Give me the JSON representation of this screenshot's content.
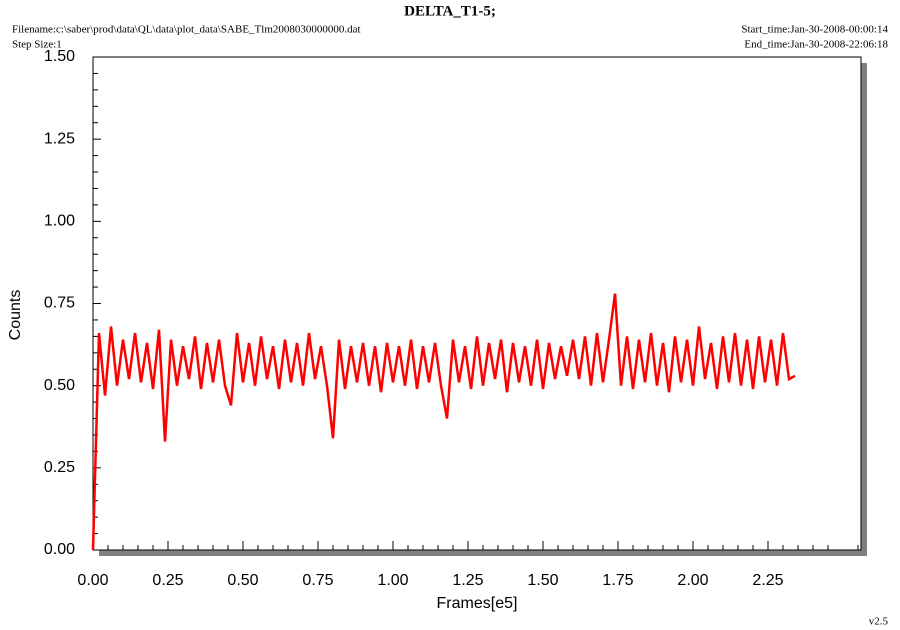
{
  "chart_data": {
    "type": "line",
    "title": "DELTA_T1-5;",
    "filename": "Filename:c:\\saber\\prod\\data\\QL\\data\\plot_data\\SABE_Tlm2008030000000.dat",
    "step_size": "Step Size:1",
    "start_time": "Start_time:Jan-30-2008-00:00:14",
    "end_time": "End_time:Jan-30-2008-22:06:18",
    "version": "v2.5",
    "x_label": "Frames[e5]",
    "y_label": "Counts",
    "xlim": [
      0,
      2.56
    ],
    "ylim": [
      0,
      1.5
    ],
    "xticks": [
      {
        "value": 0,
        "label": "0.00"
      },
      {
        "value": 0.25,
        "label": "0.25"
      },
      {
        "value": 0.5,
        "label": "0.50"
      },
      {
        "value": 0.75,
        "label": "0.75"
      },
      {
        "value": 1,
        "label": "1.00"
      },
      {
        "value": 1.25,
        "label": "1.25"
      },
      {
        "value": 1.5,
        "label": "1.50"
      },
      {
        "value": 1.75,
        "label": "1.75"
      },
      {
        "value": 2,
        "label": "2.00"
      },
      {
        "value": 2.25,
        "label": "2.25"
      }
    ],
    "yticks": [
      {
        "value": 0,
        "label": "0.00"
      },
      {
        "value": 0.25,
        "label": "0.25"
      },
      {
        "value": 0.5,
        "label": "0.50"
      },
      {
        "value": 0.75,
        "label": "0.75"
      },
      {
        "value": 1,
        "label": "1.00"
      },
      {
        "value": 1.25,
        "label": "1.25"
      },
      {
        "value": 1.5,
        "label": "1.50"
      }
    ],
    "grid": false,
    "color": "#ff0000",
    "x": [
      0,
      0.02,
      0.04,
      0.06,
      0.08,
      0.1,
      0.12,
      0.14,
      0.16,
      0.18,
      0.2,
      0.22,
      0.24,
      0.26,
      0.28,
      0.3,
      0.32,
      0.34,
      0.36,
      0.38,
      0.4,
      0.42,
      0.44,
      0.46,
      0.48,
      0.5,
      0.52,
      0.54,
      0.56,
      0.58,
      0.6,
      0.62,
      0.64,
      0.66,
      0.68,
      0.7,
      0.72,
      0.74,
      0.76,
      0.78,
      0.8,
      0.82,
      0.84,
      0.86,
      0.88,
      0.9,
      0.92,
      0.94,
      0.96,
      0.98,
      1,
      1.02,
      1.04,
      1.06,
      1.08,
      1.1,
      1.12,
      1.14,
      1.16,
      1.18,
      1.2,
      1.22,
      1.24,
      1.26,
      1.28,
      1.3,
      1.32,
      1.34,
      1.36,
      1.38,
      1.4,
      1.42,
      1.44,
      1.46,
      1.48,
      1.5,
      1.52,
      1.54,
      1.56,
      1.58,
      1.6,
      1.62,
      1.64,
      1.66,
      1.68,
      1.7,
      1.72,
      1.74,
      1.76,
      1.78,
      1.8,
      1.82,
      1.84,
      1.86,
      1.88,
      1.9,
      1.92,
      1.94,
      1.96,
      1.98,
      2,
      2.02,
      2.04,
      2.06,
      2.08,
      2.1,
      2.12,
      2.14,
      2.16,
      2.18,
      2.2,
      2.22,
      2.24,
      2.26,
      2.28,
      2.3,
      2.32,
      2.34
    ],
    "values": [
      0,
      0.66,
      0.47,
      0.68,
      0.5,
      0.64,
      0.52,
      0.66,
      0.51,
      0.63,
      0.49,
      0.67,
      0.33,
      0.64,
      0.5,
      0.62,
      0.52,
      0.65,
      0.49,
      0.63,
      0.51,
      0.64,
      0.5,
      0.44,
      0.66,
      0.51,
      0.63,
      0.5,
      0.65,
      0.52,
      0.62,
      0.49,
      0.64,
      0.51,
      0.63,
      0.5,
      0.66,
      0.52,
      0.62,
      0.5,
      0.34,
      0.64,
      0.49,
      0.62,
      0.51,
      0.63,
      0.5,
      0.62,
      0.48,
      0.63,
      0.51,
      0.62,
      0.5,
      0.64,
      0.49,
      0.62,
      0.51,
      0.63,
      0.5,
      0.4,
      0.64,
      0.51,
      0.62,
      0.49,
      0.65,
      0.5,
      0.63,
      0.52,
      0.64,
      0.48,
      0.63,
      0.51,
      0.62,
      0.5,
      0.64,
      0.49,
      0.63,
      0.52,
      0.62,
      0.53,
      0.64,
      0.52,
      0.65,
      0.5,
      0.66,
      0.51,
      0.64,
      0.78,
      0.5,
      0.65,
      0.49,
      0.64,
      0.51,
      0.66,
      0.5,
      0.63,
      0.48,
      0.65,
      0.51,
      0.64,
      0.5,
      0.68,
      0.52,
      0.63,
      0.49,
      0.65,
      0.51,
      0.66,
      0.5,
      0.64,
      0.49,
      0.65,
      0.51,
      0.64,
      0.5,
      0.66,
      0.52,
      0.53
    ]
  }
}
